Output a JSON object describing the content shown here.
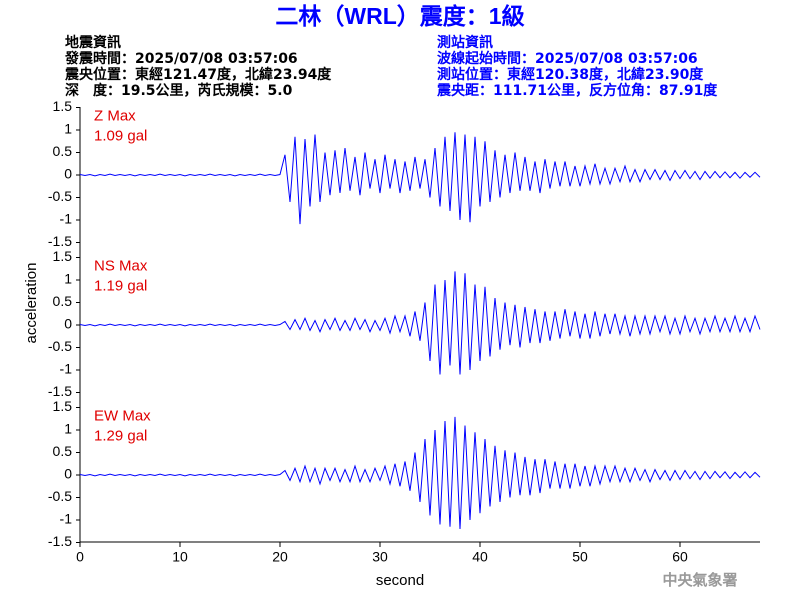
{
  "chart_data": {
    "type": "line",
    "title": "二林（WRL）震度：1級",
    "info_left": [
      "地震資訊",
      "發震時間：2025/07/08 03:57:06",
      "震央位置：東經121.47度，北緯23.94度",
      "深　度：19.5公里，芮氏規模：5.0"
    ],
    "info_right": [
      "測站資訊",
      "波線起始時間：2025/07/08 03:57:06",
      "測站位置：東經120.38度，北緯23.90度",
      "震央距：111.71公里，反方位角：87.91度"
    ],
    "x_label": "second",
    "y_label": "acceleration",
    "footer": "中央氣象署",
    "xlim": [
      0,
      68
    ],
    "xticks": [
      0,
      10,
      20,
      30,
      40,
      50,
      60
    ],
    "ylim": [
      -1.5,
      1.5
    ],
    "yticks": [
      -1.5,
      -1,
      -0.5,
      0,
      0.5,
      1,
      1.5
    ],
    "x": [
      0,
      0.5,
      1,
      1.5,
      2,
      2.5,
      3,
      3.5,
      4,
      4.5,
      5,
      5.5,
      6,
      6.5,
      7,
      7.5,
      8,
      8.5,
      9,
      9.5,
      10,
      10.5,
      11,
      11.5,
      12,
      12.5,
      13,
      13.5,
      14,
      14.5,
      15,
      15.5,
      16,
      16.5,
      17,
      17.5,
      18,
      18.5,
      19,
      19.5,
      20,
      20.5,
      21,
      21.5,
      22,
      22.5,
      23,
      23.5,
      24,
      24.5,
      25,
      25.5,
      26,
      26.5,
      27,
      27.5,
      28,
      28.5,
      29,
      29.5,
      30,
      30.5,
      31,
      31.5,
      32,
      32.5,
      33,
      33.5,
      34,
      34.5,
      35,
      35.5,
      36,
      36.5,
      37,
      37.5,
      38,
      38.5,
      39,
      39.5,
      40,
      40.5,
      41,
      41.5,
      42,
      42.5,
      43,
      43.5,
      44,
      44.5,
      45,
      45.5,
      46,
      46.5,
      47,
      47.5,
      48,
      48.5,
      49,
      49.5,
      50,
      50.5,
      51,
      51.5,
      52,
      52.5,
      53,
      53.5,
      54,
      54.5,
      55,
      55.5,
      56,
      56.5,
      57,
      57.5,
      58,
      58.5,
      59,
      59.5,
      60,
      60.5,
      61,
      61.5,
      62,
      62.5,
      63,
      63.5,
      64,
      64.5,
      65,
      65.5,
      66,
      66.5,
      67,
      67.5,
      68
    ],
    "series": [
      {
        "name": "Z Max",
        "peak": "1.09 gal",
        "color": "#0000ff",
        "values": [
          0.01,
          -0.01,
          0.01,
          -0.02,
          0.01,
          -0.01,
          0.02,
          -0.01,
          0.01,
          -0.01,
          0.01,
          -0.02,
          0.01,
          -0.01,
          0.01,
          -0.01,
          0.02,
          -0.01,
          0.01,
          -0.01,
          0.01,
          -0.02,
          0.01,
          -0.01,
          0.01,
          -0.01,
          0.02,
          -0.01,
          0.01,
          -0.01,
          0.01,
          -0.02,
          0.01,
          -0.01,
          0.01,
          -0.01,
          0.02,
          -0.01,
          0.01,
          -0.01,
          0.01,
          0.45,
          -0.6,
          0.85,
          -1.09,
          0.8,
          -0.7,
          0.9,
          -0.6,
          0.5,
          -0.45,
          0.55,
          -0.4,
          0.6,
          -0.35,
          0.4,
          -0.45,
          0.5,
          -0.3,
          0.35,
          -0.4,
          0.45,
          -0.3,
          0.35,
          -0.4,
          0.3,
          -0.35,
          0.4,
          -0.3,
          0.35,
          -0.5,
          0.6,
          -0.7,
          0.85,
          -0.8,
          0.95,
          -1.0,
          0.9,
          -1.05,
          0.85,
          -0.7,
          0.75,
          -0.6,
          0.55,
          -0.5,
          0.45,
          -0.4,
          0.5,
          -0.35,
          0.4,
          -0.35,
          0.3,
          -0.4,
          0.35,
          -0.3,
          0.3,
          -0.25,
          0.3,
          -0.25,
          0.2,
          -0.25,
          0.2,
          -0.2,
          0.25,
          -0.2,
          0.15,
          -0.2,
          0.15,
          -0.15,
          0.2,
          -0.15,
          0.12,
          -0.15,
          0.12,
          -0.1,
          0.12,
          -0.1,
          0.1,
          -0.12,
          0.1,
          -0.08,
          0.1,
          -0.08,
          0.08,
          -0.1,
          0.08,
          -0.07,
          0.08,
          -0.06,
          0.07,
          -0.06,
          0.06,
          -0.07,
          0.06,
          -0.05,
          0.06,
          -0.05
        ]
      },
      {
        "name": "NS Max",
        "peak": "1.19 gal",
        "color": "#0000ff",
        "values": [
          0.01,
          -0.01,
          0.01,
          -0.02,
          0.01,
          -0.01,
          0.02,
          -0.01,
          0.01,
          -0.01,
          0.01,
          -0.02,
          0.01,
          -0.01,
          0.01,
          -0.01,
          0.02,
          -0.01,
          0.01,
          -0.01,
          0.01,
          -0.02,
          0.01,
          -0.01,
          0.01,
          -0.01,
          0.02,
          -0.01,
          0.01,
          -0.01,
          0.01,
          -0.02,
          0.01,
          -0.01,
          0.01,
          -0.01,
          0.02,
          -0.01,
          0.01,
          -0.01,
          0.01,
          0.08,
          -0.1,
          0.12,
          -0.1,
          0.15,
          -0.12,
          0.1,
          -0.15,
          0.12,
          -0.1,
          0.15,
          -0.12,
          0.1,
          -0.12,
          0.15,
          -0.1,
          0.12,
          -0.15,
          0.1,
          -0.12,
          0.15,
          -0.18,
          0.2,
          -0.15,
          0.2,
          -0.25,
          0.3,
          -0.35,
          0.5,
          -0.8,
          0.9,
          -1.1,
          1.0,
          -0.9,
          1.19,
          -1.1,
          1.15,
          -1.0,
          0.9,
          -0.8,
          0.85,
          -0.7,
          0.6,
          -0.55,
          0.5,
          -0.45,
          0.45,
          -0.5,
          0.4,
          -0.4,
          0.35,
          -0.4,
          0.3,
          -0.35,
          0.3,
          -0.3,
          0.35,
          -0.25,
          0.3,
          -0.3,
          0.25,
          -0.3,
          0.3,
          -0.25,
          0.25,
          -0.2,
          0.25,
          -0.2,
          0.2,
          -0.25,
          0.2,
          -0.2,
          0.2,
          -0.2,
          0.2,
          -0.15,
          0.2,
          -0.2,
          0.15,
          -0.2,
          0.2,
          -0.15,
          0.15,
          -0.2,
          0.15,
          -0.15,
          0.2,
          -0.15,
          0.15,
          -0.15,
          0.2,
          -0.15,
          0.15,
          -0.15,
          0.2,
          -0.1
        ]
      },
      {
        "name": "EW Max",
        "peak": "1.29 gal",
        "color": "#0000ff",
        "values": [
          0.01,
          -0.01,
          0.01,
          -0.02,
          0.01,
          -0.01,
          0.02,
          -0.01,
          0.01,
          -0.01,
          0.01,
          -0.02,
          0.01,
          -0.01,
          0.01,
          -0.01,
          0.02,
          -0.01,
          0.01,
          -0.01,
          0.01,
          -0.02,
          0.01,
          -0.01,
          0.01,
          -0.01,
          0.02,
          -0.01,
          0.01,
          -0.01,
          0.01,
          -0.02,
          0.01,
          -0.01,
          0.01,
          -0.01,
          0.02,
          -0.01,
          0.01,
          -0.01,
          0.01,
          0.1,
          -0.12,
          0.15,
          -0.15,
          0.2,
          -0.15,
          0.15,
          -0.2,
          0.15,
          -0.12,
          0.15,
          -0.15,
          0.12,
          -0.15,
          0.2,
          -0.15,
          0.12,
          -0.15,
          0.15,
          -0.12,
          0.2,
          -0.2,
          0.25,
          -0.25,
          0.3,
          -0.35,
          0.5,
          -0.6,
          0.8,
          -0.9,
          1.0,
          -1.1,
          1.2,
          -1.15,
          1.29,
          -1.2,
          1.1,
          -1.0,
          0.95,
          -0.85,
          0.8,
          -0.7,
          0.65,
          -0.6,
          0.55,
          -0.5,
          0.5,
          -0.45,
          0.4,
          -0.45,
          0.35,
          -0.4,
          0.35,
          -0.3,
          0.3,
          -0.3,
          0.25,
          -0.3,
          0.25,
          -0.25,
          0.2,
          -0.25,
          0.2,
          -0.2,
          0.2,
          -0.15,
          0.2,
          -0.15,
          0.15,
          -0.15,
          0.15,
          -0.12,
          0.12,
          -0.15,
          0.12,
          -0.1,
          0.1,
          -0.12,
          0.1,
          -0.1,
          0.1,
          -0.08,
          0.08,
          -0.1,
          0.08,
          -0.08,
          0.08,
          -0.06,
          0.07,
          -0.08,
          0.06,
          -0.06,
          0.07,
          -0.06,
          0.06,
          -0.05
        ]
      }
    ]
  }
}
